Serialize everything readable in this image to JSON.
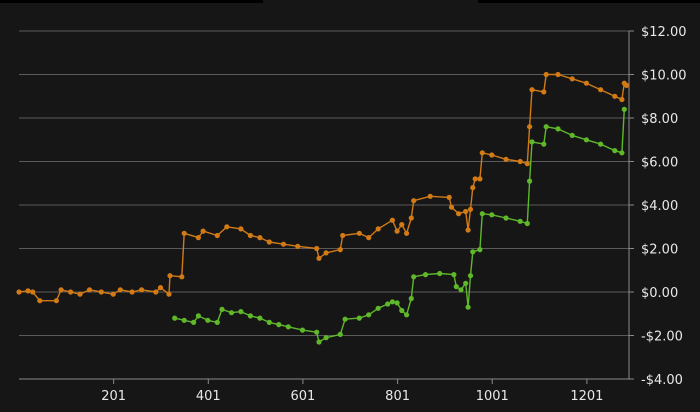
{
  "chart_data": {
    "type": "line",
    "xlim": [
      1,
      1290
    ],
    "ylim": [
      -4,
      12
    ],
    "x_ticks": [
      201,
      401,
      601,
      801,
      1001,
      1201
    ],
    "x_tick_labels": [
      "201",
      "401",
      "601",
      "801",
      "1001",
      "1201"
    ],
    "y_ticks": [
      -4,
      -2,
      0,
      2,
      4,
      6,
      8,
      10,
      12
    ],
    "y_tick_labels": [
      "-$4.00",
      "-$2.00",
      "$0.00",
      "$2.00",
      "$4.00",
      "$6.00",
      "$8.00",
      "$10.00",
      "$12.00"
    ],
    "y_axis_position": "right",
    "grid": true,
    "series": [
      {
        "color": "#d17a16",
        "points": [
          [
            1,
            0.0
          ],
          [
            20,
            0.05
          ],
          [
            30,
            0.0
          ],
          [
            45,
            -0.4
          ],
          [
            80,
            -0.4
          ],
          [
            90,
            0.1
          ],
          [
            110,
            0.0
          ],
          [
            130,
            -0.1
          ],
          [
            150,
            0.1
          ],
          [
            175,
            0.0
          ],
          [
            200,
            -0.1
          ],
          [
            215,
            0.1
          ],
          [
            240,
            0.0
          ],
          [
            260,
            0.1
          ],
          [
            290,
            0.0
          ],
          [
            300,
            0.2
          ],
          [
            318,
            -0.1
          ],
          [
            320,
            0.75
          ],
          [
            345,
            0.7
          ],
          [
            350,
            2.7
          ],
          [
            380,
            2.5
          ],
          [
            390,
            2.8
          ],
          [
            420,
            2.6
          ],
          [
            440,
            3.0
          ],
          [
            470,
            2.9
          ],
          [
            490,
            2.6
          ],
          [
            510,
            2.5
          ],
          [
            530,
            2.3
          ],
          [
            560,
            2.2
          ],
          [
            590,
            2.1
          ],
          [
            630,
            2.0
          ],
          [
            635,
            1.55
          ],
          [
            650,
            1.8
          ],
          [
            680,
            1.95
          ],
          [
            685,
            2.6
          ],
          [
            720,
            2.7
          ],
          [
            740,
            2.5
          ],
          [
            760,
            2.9
          ],
          [
            790,
            3.3
          ],
          [
            800,
            2.8
          ],
          [
            810,
            3.1
          ],
          [
            820,
            2.7
          ],
          [
            830,
            3.4
          ],
          [
            835,
            4.2
          ],
          [
            870,
            4.4
          ],
          [
            910,
            4.35
          ],
          [
            915,
            3.9
          ],
          [
            930,
            3.6
          ],
          [
            945,
            3.7
          ],
          [
            950,
            2.85
          ],
          [
            955,
            3.8
          ],
          [
            960,
            4.8
          ],
          [
            965,
            5.2
          ],
          [
            975,
            5.2
          ],
          [
            980,
            6.4
          ],
          [
            1000,
            6.3
          ],
          [
            1030,
            6.1
          ],
          [
            1060,
            6.0
          ],
          [
            1075,
            5.9
          ],
          [
            1080,
            7.6
          ],
          [
            1085,
            9.3
          ],
          [
            1110,
            9.2
          ],
          [
            1115,
            10.0
          ],
          [
            1140,
            10.0
          ],
          [
            1170,
            9.8
          ],
          [
            1200,
            9.6
          ],
          [
            1230,
            9.3
          ],
          [
            1260,
            9.0
          ],
          [
            1275,
            8.85
          ],
          [
            1280,
            9.6
          ],
          [
            1285,
            9.5
          ]
        ]
      },
      {
        "color": "#5fb82a",
        "points": [
          [
            330,
            -1.2
          ],
          [
            350,
            -1.3
          ],
          [
            370,
            -1.4
          ],
          [
            380,
            -1.1
          ],
          [
            400,
            -1.3
          ],
          [
            420,
            -1.4
          ],
          [
            430,
            -0.8
          ],
          [
            450,
            -0.95
          ],
          [
            470,
            -0.9
          ],
          [
            490,
            -1.1
          ],
          [
            510,
            -1.2
          ],
          [
            530,
            -1.4
          ],
          [
            550,
            -1.5
          ],
          [
            570,
            -1.6
          ],
          [
            600,
            -1.75
          ],
          [
            630,
            -1.85
          ],
          [
            635,
            -2.3
          ],
          [
            650,
            -2.1
          ],
          [
            680,
            -1.95
          ],
          [
            690,
            -1.25
          ],
          [
            720,
            -1.2
          ],
          [
            740,
            -1.05
          ],
          [
            760,
            -0.75
          ],
          [
            780,
            -0.55
          ],
          [
            790,
            -0.45
          ],
          [
            800,
            -0.5
          ],
          [
            810,
            -0.85
          ],
          [
            820,
            -1.05
          ],
          [
            830,
            -0.3
          ],
          [
            835,
            0.7
          ],
          [
            860,
            0.8
          ],
          [
            890,
            0.85
          ],
          [
            920,
            0.8
          ],
          [
            925,
            0.25
          ],
          [
            935,
            0.1
          ],
          [
            945,
            0.4
          ],
          [
            950,
            -0.7
          ],
          [
            955,
            0.75
          ],
          [
            960,
            1.85
          ],
          [
            975,
            1.95
          ],
          [
            980,
            3.6
          ],
          [
            1000,
            3.55
          ],
          [
            1030,
            3.4
          ],
          [
            1060,
            3.25
          ],
          [
            1075,
            3.15
          ],
          [
            1080,
            5.1
          ],
          [
            1085,
            6.9
          ],
          [
            1110,
            6.8
          ],
          [
            1115,
            7.6
          ],
          [
            1140,
            7.5
          ],
          [
            1170,
            7.2
          ],
          [
            1200,
            7.0
          ],
          [
            1230,
            6.8
          ],
          [
            1260,
            6.5
          ],
          [
            1275,
            6.4
          ],
          [
            1280,
            8.4
          ]
        ]
      }
    ]
  }
}
